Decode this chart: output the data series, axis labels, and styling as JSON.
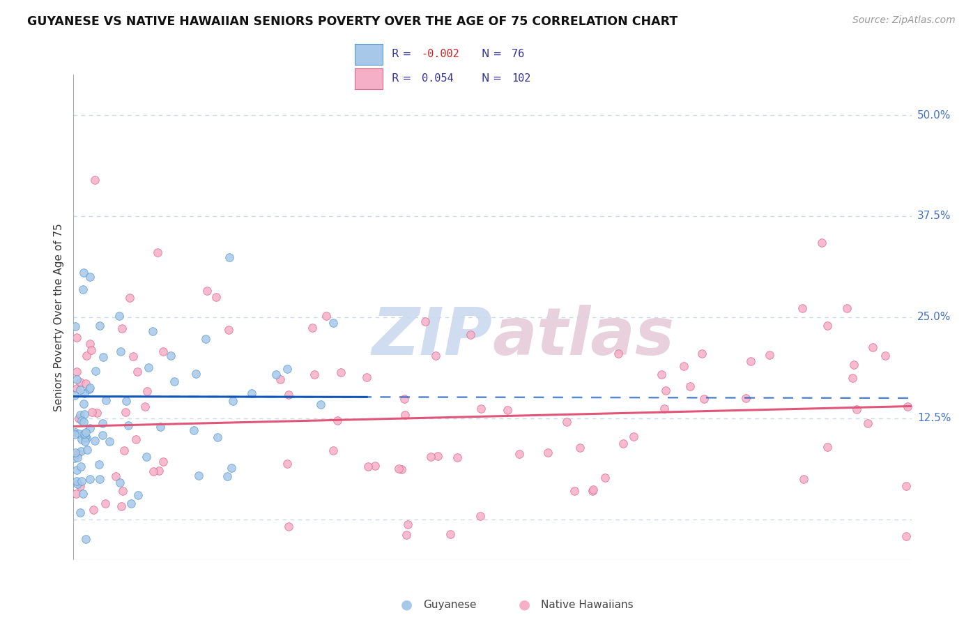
{
  "title": "GUYANESE VS NATIVE HAWAIIAN SENIORS POVERTY OVER THE AGE OF 75 CORRELATION CHART",
  "source": "Source: ZipAtlas.com",
  "ylabel": "Seniors Poverty Over the Age of 75",
  "xlim": [
    0.0,
    100.0
  ],
  "ylim": [
    -5.0,
    55.0
  ],
  "guyanese_color": "#a8c8ea",
  "guyanese_edge": "#5599cc",
  "native_color": "#f5b0c8",
  "native_edge": "#dd6688",
  "guyanese_line_color": "#1155bb",
  "native_line_color": "#e05578",
  "legend_R_guyanese": "-0.002",
  "legend_N_guyanese": "76",
  "legend_R_native": "0.054",
  "legend_N_native": "102",
  "ytick_vals": [
    0.0,
    12.5,
    25.0,
    37.5,
    50.0
  ],
  "ytick_labels": [
    "",
    "12.5%",
    "25.0%",
    "37.5%",
    "50.0%"
  ],
  "grid_color": "#c8d8ee",
  "background": "#ffffff",
  "watermark_zip_color": "#d0ddf0",
  "watermark_atlas_color": "#e8d0dc"
}
